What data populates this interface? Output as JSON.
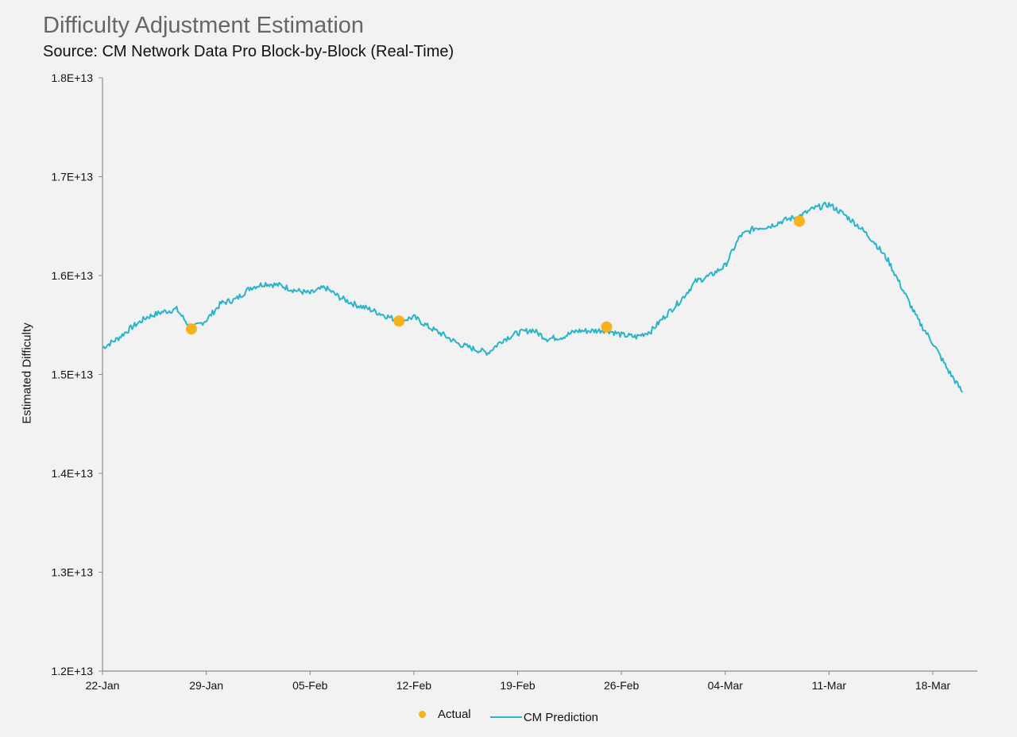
{
  "chart_data": {
    "type": "line",
    "title": "Difficulty Adjustment Estimation",
    "subtitle": "Source: CM Network Data Pro Block-by-Block (Real-Time)",
    "xlabel": "",
    "ylabel": "Estimated Difficulty",
    "x_start": "2020-01-22",
    "x_end": "2020-03-20",
    "xlim": [
      "2020-01-22",
      "2020-03-21"
    ],
    "ylim": [
      12000000000000.0,
      18000000000000.0
    ],
    "y_ticks": [
      12000000000000.0,
      13000000000000.0,
      14000000000000.0,
      15000000000000.0,
      16000000000000.0,
      17000000000000.0,
      18000000000000.0
    ],
    "y_tick_labels": [
      "1.2E+13",
      "1.3E+13",
      "1.4E+13",
      "1.5E+13",
      "1.6E+13",
      "1.7E+13",
      "1.8E+13"
    ],
    "x_ticks": [
      "2020-01-22",
      "2020-01-29",
      "2020-02-05",
      "2020-02-12",
      "2020-02-19",
      "2020-02-26",
      "2020-03-04",
      "2020-03-11",
      "2020-03-18"
    ],
    "x_tick_labels": [
      "22-Jan",
      "29-Jan",
      "05-Feb",
      "12-Feb",
      "19-Feb",
      "26-Feb",
      "04-Mar",
      "11-Mar",
      "18-Mar"
    ],
    "grid": false,
    "legend_position": "bottom",
    "colors": {
      "actual": "#f5b21b",
      "prediction": "#2ab4cc"
    },
    "series": [
      {
        "name": "Actual",
        "kind": "scatter",
        "x": [
          "2020-01-28",
          "2020-02-11",
          "2020-02-25",
          "2020-03-09"
        ],
        "y": [
          15460000000000.0,
          15540000000000.0,
          15480000000000.0,
          16550000000000.0
        ]
      },
      {
        "name": "CM Prediction",
        "kind": "line",
        "x": [
          "2020-01-22",
          "2020-01-23",
          "2020-01-24",
          "2020-01-25",
          "2020-01-26",
          "2020-01-27",
          "2020-01-28",
          "2020-01-29",
          "2020-01-30",
          "2020-01-31",
          "2020-02-01",
          "2020-02-02",
          "2020-02-03",
          "2020-02-04",
          "2020-02-05",
          "2020-02-06",
          "2020-02-07",
          "2020-02-08",
          "2020-02-09",
          "2020-02-10",
          "2020-02-11",
          "2020-02-12",
          "2020-02-13",
          "2020-02-14",
          "2020-02-15",
          "2020-02-16",
          "2020-02-17",
          "2020-02-18",
          "2020-02-19",
          "2020-02-20",
          "2020-02-21",
          "2020-02-22",
          "2020-02-23",
          "2020-02-24",
          "2020-02-25",
          "2020-02-26",
          "2020-02-27",
          "2020-02-28",
          "2020-02-29",
          "2020-03-01",
          "2020-03-02",
          "2020-03-03",
          "2020-03-04",
          "2020-03-05",
          "2020-03-06",
          "2020-03-07",
          "2020-03-08",
          "2020-03-09",
          "2020-03-10",
          "2020-03-11",
          "2020-03-12",
          "2020-03-13",
          "2020-03-14",
          "2020-03-15",
          "2020-03-16",
          "2020-03-17",
          "2020-03-18",
          "2020-03-19",
          "2020-03-20"
        ],
        "y": [
          15270000000000.0,
          15360000000000.0,
          15480000000000.0,
          15580000000000.0,
          15630000000000.0,
          15660000000000.0,
          15460000000000.0,
          15550000000000.0,
          15720000000000.0,
          15760000000000.0,
          15880000000000.0,
          15920000000000.0,
          15900000000000.0,
          15850000000000.0,
          15820000000000.0,
          15880000000000.0,
          15780000000000.0,
          15710000000000.0,
          15660000000000.0,
          15600000000000.0,
          15540000000000.0,
          15580000000000.0,
          15480000000000.0,
          15400000000000.0,
          15310000000000.0,
          15260000000000.0,
          15220000000000.0,
          15350000000000.0,
          15420000000000.0,
          15450000000000.0,
          15360000000000.0,
          15380000000000.0,
          15440000000000.0,
          15440000000000.0,
          15450000000000.0,
          15400000000000.0,
          15380000000000.0,
          15440000000000.0,
          15600000000000.0,
          15750000000000.0,
          15940000000000.0,
          16000000000000.0,
          16100000000000.0,
          16400000000000.0,
          16480000000000.0,
          16500000000000.0,
          16560000000000.0,
          16600000000000.0,
          16680000000000.0,
          16720000000000.0,
          16620000000000.0,
          16500000000000.0,
          16350000000000.0,
          16150000000000.0,
          15850000000000.0,
          15550000000000.0,
          15320000000000.0,
          15050000000000.0,
          14820000000000.0
        ]
      }
    ]
  }
}
